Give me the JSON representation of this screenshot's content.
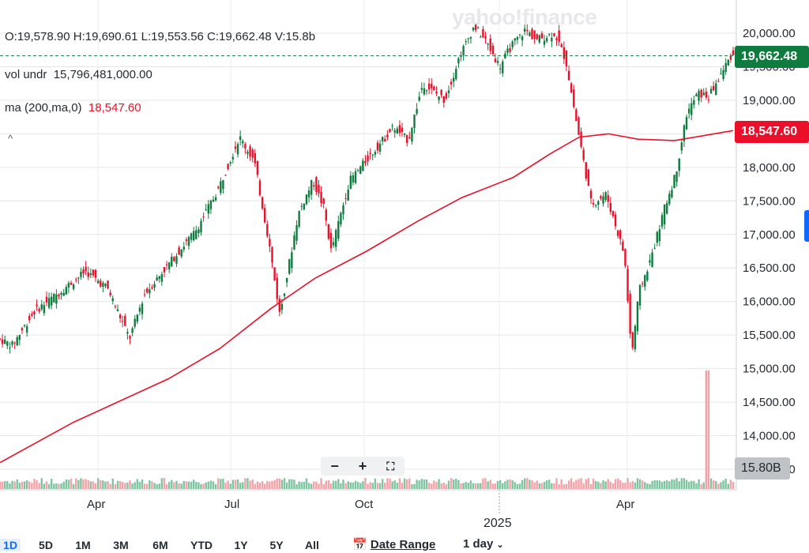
{
  "header": {
    "ohlcv": "O:19,578.90   H:19,690.61   L:19,553.56   C:19,662.48   V:15.8b",
    "vol_label": "vol undr",
    "vol_value": "15,796,481,000.00",
    "ma_label": "ma (200,ma,0)",
    "ma_value": "18,547.60",
    "logo": "yahoo!finance",
    "collapse_glyph": "^"
  },
  "price_tag": "19,662.48",
  "ma_tag": "18,547.60",
  "volume_tag": "15.80B",
  "zoom": {
    "minus": "−",
    "plus": "+",
    "fullscreen": "⛶"
  },
  "x_axis": {
    "labels": [
      "Apr",
      "Jul",
      "Oct",
      "Apr"
    ],
    "year_label": "2025"
  },
  "range_buttons": [
    "1D",
    "5D",
    "1M",
    "3M",
    "6M",
    "YTD",
    "1Y",
    "5Y",
    "All"
  ],
  "date_range_label": "Date Range",
  "interval_label": "1 day",
  "icons": {
    "calendar": "calendar-icon",
    "chevron": "chevron-down-icon",
    "fullscreen": "fullscreen-icon"
  },
  "colors": {
    "up": "#0f7b3f",
    "down": "#eb0f29",
    "ma": "#eb0f29",
    "accent": "#0f69ff",
    "grid": "#e0e0e0"
  },
  "chart_data": {
    "type": "line",
    "title": "",
    "y_ticks": [
      "20,000.00",
      "19,500.00",
      "19,000.00",
      "18,500.00",
      "18,000.00",
      "17,500.00",
      "17,000.00",
      "16,500.00",
      "16,000.00",
      "15,500.00",
      "15,000.00",
      "14,500.00",
      "14,000.00",
      "13,500.00"
    ],
    "ylim": [
      13500,
      20250
    ],
    "x_ticks": [
      "Apr",
      "Jul",
      "Oct",
      "2025",
      "Apr"
    ],
    "last_close": 19662.48,
    "series": [
      {
        "name": "ma (200,ma,0)",
        "points": [
          [
            0,
            13600
          ],
          [
            0.1,
            14200
          ],
          [
            0.16,
            14500
          ],
          [
            0.23,
            14850
          ],
          [
            0.3,
            15300
          ],
          [
            0.37,
            15900
          ],
          [
            0.43,
            16350
          ],
          [
            0.5,
            16750
          ],
          [
            0.57,
            17200
          ],
          [
            0.63,
            17550
          ],
          [
            0.7,
            17850
          ],
          [
            0.75,
            18200
          ],
          [
            0.79,
            18450
          ],
          [
            0.83,
            18500
          ],
          [
            0.87,
            18420
          ],
          [
            0.92,
            18400
          ],
          [
            1.0,
            18547.6
          ]
        ]
      },
      {
        "name": "price",
        "points": [
          [
            0,
            15450
          ],
          [
            0.02,
            15350
          ],
          [
            0.05,
            15850
          ],
          [
            0.08,
            16100
          ],
          [
            0.12,
            16450
          ],
          [
            0.15,
            16200
          ],
          [
            0.18,
            15450
          ],
          [
            0.2,
            16100
          ],
          [
            0.24,
            16650
          ],
          [
            0.27,
            17050
          ],
          [
            0.3,
            17650
          ],
          [
            0.33,
            18450
          ],
          [
            0.35,
            18100
          ],
          [
            0.37,
            16900
          ],
          [
            0.385,
            15800
          ],
          [
            0.41,
            17300
          ],
          [
            0.43,
            17800
          ],
          [
            0.445,
            17400
          ],
          [
            0.455,
            16750
          ],
          [
            0.48,
            17800
          ],
          [
            0.51,
            18200
          ],
          [
            0.54,
            18600
          ],
          [
            0.56,
            18400
          ],
          [
            0.58,
            19250
          ],
          [
            0.61,
            19000
          ],
          [
            0.63,
            19650
          ],
          [
            0.65,
            20100
          ],
          [
            0.665,
            19900
          ],
          [
            0.685,
            19500
          ],
          [
            0.7,
            19800
          ],
          [
            0.72,
            20050
          ],
          [
            0.735,
            19900
          ],
          [
            0.76,
            20000
          ],
          [
            0.775,
            19600
          ],
          [
            0.79,
            18650
          ],
          [
            0.81,
            17450
          ],
          [
            0.83,
            17600
          ],
          [
            0.855,
            16700
          ],
          [
            0.865,
            15200
          ],
          [
            0.875,
            16150
          ],
          [
            0.89,
            16600
          ],
          [
            0.91,
            17400
          ],
          [
            0.925,
            17900
          ],
          [
            0.94,
            18800
          ],
          [
            0.955,
            19100
          ],
          [
            0.97,
            19050
          ],
          [
            0.985,
            19350
          ],
          [
            1.0,
            19662.48
          ]
        ]
      }
    ],
    "volume_last": "15.80B"
  }
}
